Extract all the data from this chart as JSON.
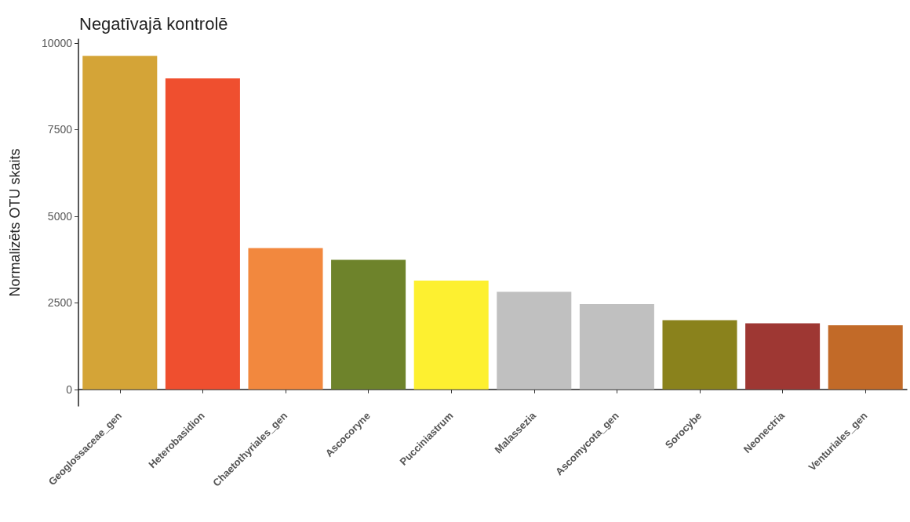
{
  "chart_data": {
    "type": "bar",
    "title": "Negatīvajā kontrolē",
    "ylabel": "Normalizēts OTU skaits",
    "categories": [
      "Geoglossaceae_gen",
      "Heterobasidion",
      "Chaetothyriales_gen",
      "Ascocoryne",
      "Pucciniastrum",
      "Malassezia",
      "Ascomycota_gen",
      "Sorocybe",
      "Neonectria",
      "Venturiales_gen"
    ],
    "values": [
      9630,
      8980,
      4080,
      3740,
      3140,
      2820,
      2460,
      2000,
      1910,
      1850
    ],
    "colors": [
      "#d4a437",
      "#ef4f2f",
      "#f2883e",
      "#6e832b",
      "#fdf030",
      "#c0c0c0",
      "#c0c0c0",
      "#8a821c",
      "#9e3733",
      "#c26a28"
    ],
    "ylim": [
      -480,
      10110
    ],
    "yticks": [
      0,
      2500,
      5000,
      7500,
      10000
    ],
    "grid": false
  }
}
